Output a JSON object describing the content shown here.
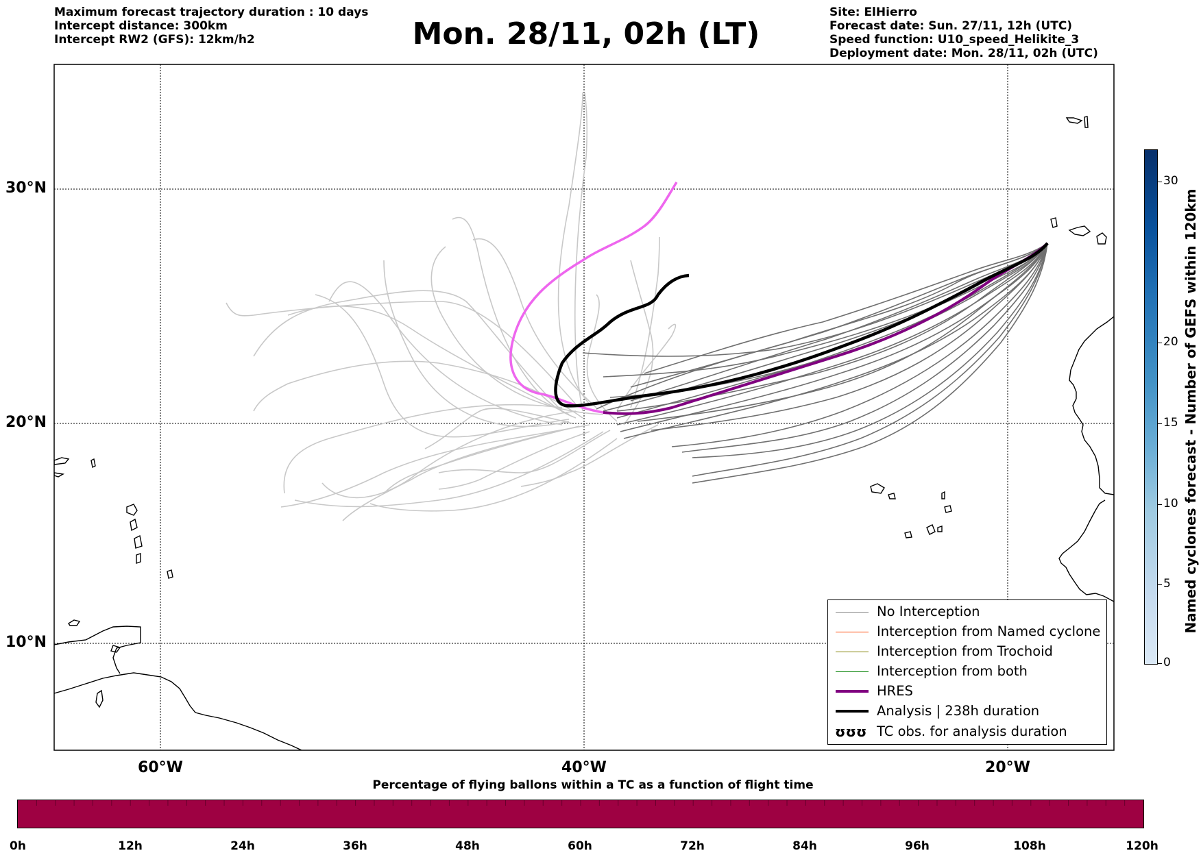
{
  "header": {
    "left_lines": [
      "Maximum forecast trajectory duration : 10 days",
      "Intercept distance: 300km",
      "Intercept RW2 (GFS):  12km/h2"
    ],
    "title": "Mon. 28/11, 02h (LT)",
    "right_lines": [
      "Site: ElHierro",
      "Forecast date: Sun. 27/11, 12h (UTC)",
      "Speed function: U10_speed_Helikite_3",
      "Deployment date: Mon. 28/11, 02h (UTC)"
    ]
  },
  "map": {
    "lat_labels": [
      "30°N",
      "20°N",
      "10°N"
    ],
    "lon_labels": [
      "60°W",
      "40°W",
      "20°W"
    ]
  },
  "legend": {
    "items": [
      {
        "label": "No Interception",
        "color": "#808080",
        "style": "thin"
      },
      {
        "label": "Interception from Named cyclone",
        "color": "#ff4500",
        "style": "thin"
      },
      {
        "label": "Interception from Trochoid",
        "color": "#808000",
        "style": "thin"
      },
      {
        "label": "Interception from both",
        "color": "#008000",
        "style": "thin"
      },
      {
        "label": "HRES",
        "color": "#800080",
        "style": "thick"
      },
      {
        "label": "Analysis | 238h duration",
        "color": "#000000",
        "style": "thick"
      },
      {
        "label": "TC obs. for analysis duration",
        "color": "#000000",
        "style": "symbol",
        "symbol": "ʊʊʊ"
      }
    ]
  },
  "colorbar_vertical": {
    "label": "Named cyclones forecast - Number of GEFS within 120km",
    "ticks": [
      "0",
      "5",
      "10",
      "15",
      "20",
      "30"
    ]
  },
  "colorbar_horizontal": {
    "title": "Percentage of flying ballons within a TC as a function of flight time",
    "fill_color": "#9e0142",
    "ticks": [
      "0h",
      "12h",
      "24h",
      "36h",
      "48h",
      "60h",
      "72h",
      "84h",
      "96h",
      "108h",
      "120h"
    ]
  },
  "colors": {
    "analysis": "#000000",
    "hres": "#800080",
    "alt_track": "#ee66ee",
    "no_interception": "#707070",
    "faded": "#c8c8c8"
  }
}
